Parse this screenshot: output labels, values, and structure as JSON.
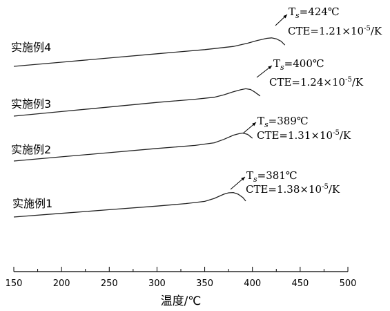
{
  "chart_data": {
    "type": "line",
    "xlabel": "温度/℃",
    "ylabel": "",
    "xlim": [
      150,
      500
    ],
    "xticks": [
      150,
      200,
      250,
      300,
      350,
      400,
      450,
      500
    ],
    "grid": false,
    "series": [
      {
        "name": "实施例1",
        "curve": [
          [
            150,
            0.0
          ],
          [
            200,
            0.048
          ],
          [
            250,
            0.096
          ],
          [
            300,
            0.144
          ],
          [
            330,
            0.176
          ],
          [
            350,
            0.205
          ],
          [
            360,
            0.245
          ],
          [
            370,
            0.3
          ],
          [
            375,
            0.318
          ],
          [
            380,
            0.322
          ],
          [
            385,
            0.3
          ],
          [
            390,
            0.255
          ],
          [
            393,
            0.21
          ]
        ],
        "ts": "381℃",
        "cte_value": "1.38",
        "cte_exp": "-5",
        "cte_unit": "/K"
      },
      {
        "name": "实施例2",
        "curve": [
          [
            150,
            0.0
          ],
          [
            200,
            0.055
          ],
          [
            250,
            0.11
          ],
          [
            300,
            0.165
          ],
          [
            340,
            0.205
          ],
          [
            360,
            0.24
          ],
          [
            370,
            0.285
          ],
          [
            380,
            0.34
          ],
          [
            386,
            0.36
          ],
          [
            390,
            0.368
          ],
          [
            395,
            0.35
          ],
          [
            400,
            0.3
          ]
        ],
        "ts": "389℃",
        "cte_value": "1.31",
        "cte_exp": "-5",
        "cte_unit": "/K"
      },
      {
        "name": "实施例3",
        "curve": [
          [
            150,
            0.0
          ],
          [
            200,
            0.06
          ],
          [
            250,
            0.12
          ],
          [
            300,
            0.18
          ],
          [
            340,
            0.222
          ],
          [
            360,
            0.248
          ],
          [
            370,
            0.28
          ],
          [
            380,
            0.32
          ],
          [
            388,
            0.348
          ],
          [
            393,
            0.36
          ],
          [
            398,
            0.35
          ],
          [
            402,
            0.32
          ],
          [
            408,
            0.265
          ]
        ],
        "ts": "400℃",
        "cte_value": "1.24",
        "cte_exp": "-5",
        "cte_unit": "/K"
      },
      {
        "name": "实施例4",
        "curve": [
          [
            150,
            0.0
          ],
          [
            200,
            0.055
          ],
          [
            250,
            0.11
          ],
          [
            300,
            0.165
          ],
          [
            350,
            0.22
          ],
          [
            380,
            0.262
          ],
          [
            395,
            0.305
          ],
          [
            405,
            0.34
          ],
          [
            415,
            0.368
          ],
          [
            420,
            0.375
          ],
          [
            425,
            0.362
          ],
          [
            430,
            0.33
          ],
          [
            434,
            0.28
          ]
        ],
        "ts": "424℃",
        "cte_value": "1.21",
        "cte_exp": "-5",
        "cte_unit": "/K"
      }
    ]
  }
}
